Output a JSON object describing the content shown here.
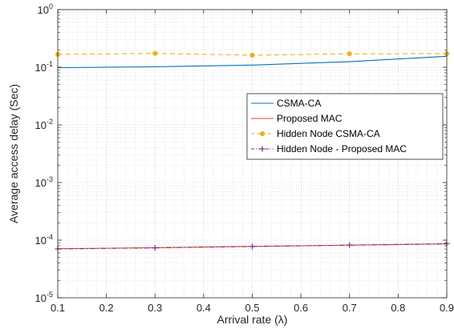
{
  "chart_data": {
    "type": "line",
    "title": "",
    "xlabel": "Arrival rate (λ)",
    "ylabel": "Average access delay (Sec)",
    "xlim": [
      0.1,
      0.9
    ],
    "ylim": [
      1e-05,
      1
    ],
    "yscale": "log",
    "grid": true,
    "minor_grid": true,
    "legend_position": "center-right",
    "x_ticks": [
      {
        "value": 0.1,
        "label": "0.1"
      },
      {
        "value": 0.2,
        "label": "0.2"
      },
      {
        "value": 0.3,
        "label": "0.3"
      },
      {
        "value": 0.4,
        "label": "0.4"
      },
      {
        "value": 0.5,
        "label": "0.5"
      },
      {
        "value": 0.6,
        "label": "0.6"
      },
      {
        "value": 0.7,
        "label": "0.7"
      },
      {
        "value": 0.8,
        "label": "0.8"
      },
      {
        "value": 0.9,
        "label": "0.9"
      }
    ],
    "y_ticks": [
      {
        "value": 1e-05,
        "base": "10",
        "exp": "-5"
      },
      {
        "value": 0.0001,
        "base": "10",
        "exp": "-4"
      },
      {
        "value": 0.001,
        "base": "10",
        "exp": "-3"
      },
      {
        "value": 0.01,
        "base": "10",
        "exp": "-2"
      },
      {
        "value": 0.1,
        "base": "10",
        "exp": "-1"
      },
      {
        "value": 1,
        "base": "10",
        "exp": "0"
      }
    ],
    "series": [
      {
        "name": "CSMA-CA",
        "color": "#0072BD",
        "style": "solid",
        "marker": "none",
        "x": [
          0.1,
          0.3,
          0.5,
          0.7,
          0.9
        ],
        "y": [
          0.098,
          0.102,
          0.109,
          0.125,
          0.155
        ]
      },
      {
        "name": "Proposed MAC",
        "color": "#D95319",
        "style": "solid",
        "marker": "none",
        "x": [
          0.1,
          0.3,
          0.5,
          0.7,
          0.9
        ],
        "y": [
          7.1e-05,
          7.4e-05,
          7.8e-05,
          8.2e-05,
          8.6e-05
        ]
      },
      {
        "name": "Hidden Node CSMA-CA",
        "color": "#EDB120",
        "style": "dashed",
        "marker": "dot",
        "x": [
          0.1,
          0.3,
          0.5,
          0.7,
          0.9
        ],
        "y": [
          0.167,
          0.174,
          0.162,
          0.171,
          0.172
        ]
      },
      {
        "name": "Hidden Node - Proposed MAC",
        "color": "#7E2F8E",
        "style": "dashdot",
        "marker": "plus",
        "x": [
          0.1,
          0.3,
          0.5,
          0.7,
          0.9
        ],
        "y": [
          7.05e-05,
          7.35e-05,
          7.75e-05,
          8.2e-05,
          8.65e-05
        ]
      }
    ]
  }
}
